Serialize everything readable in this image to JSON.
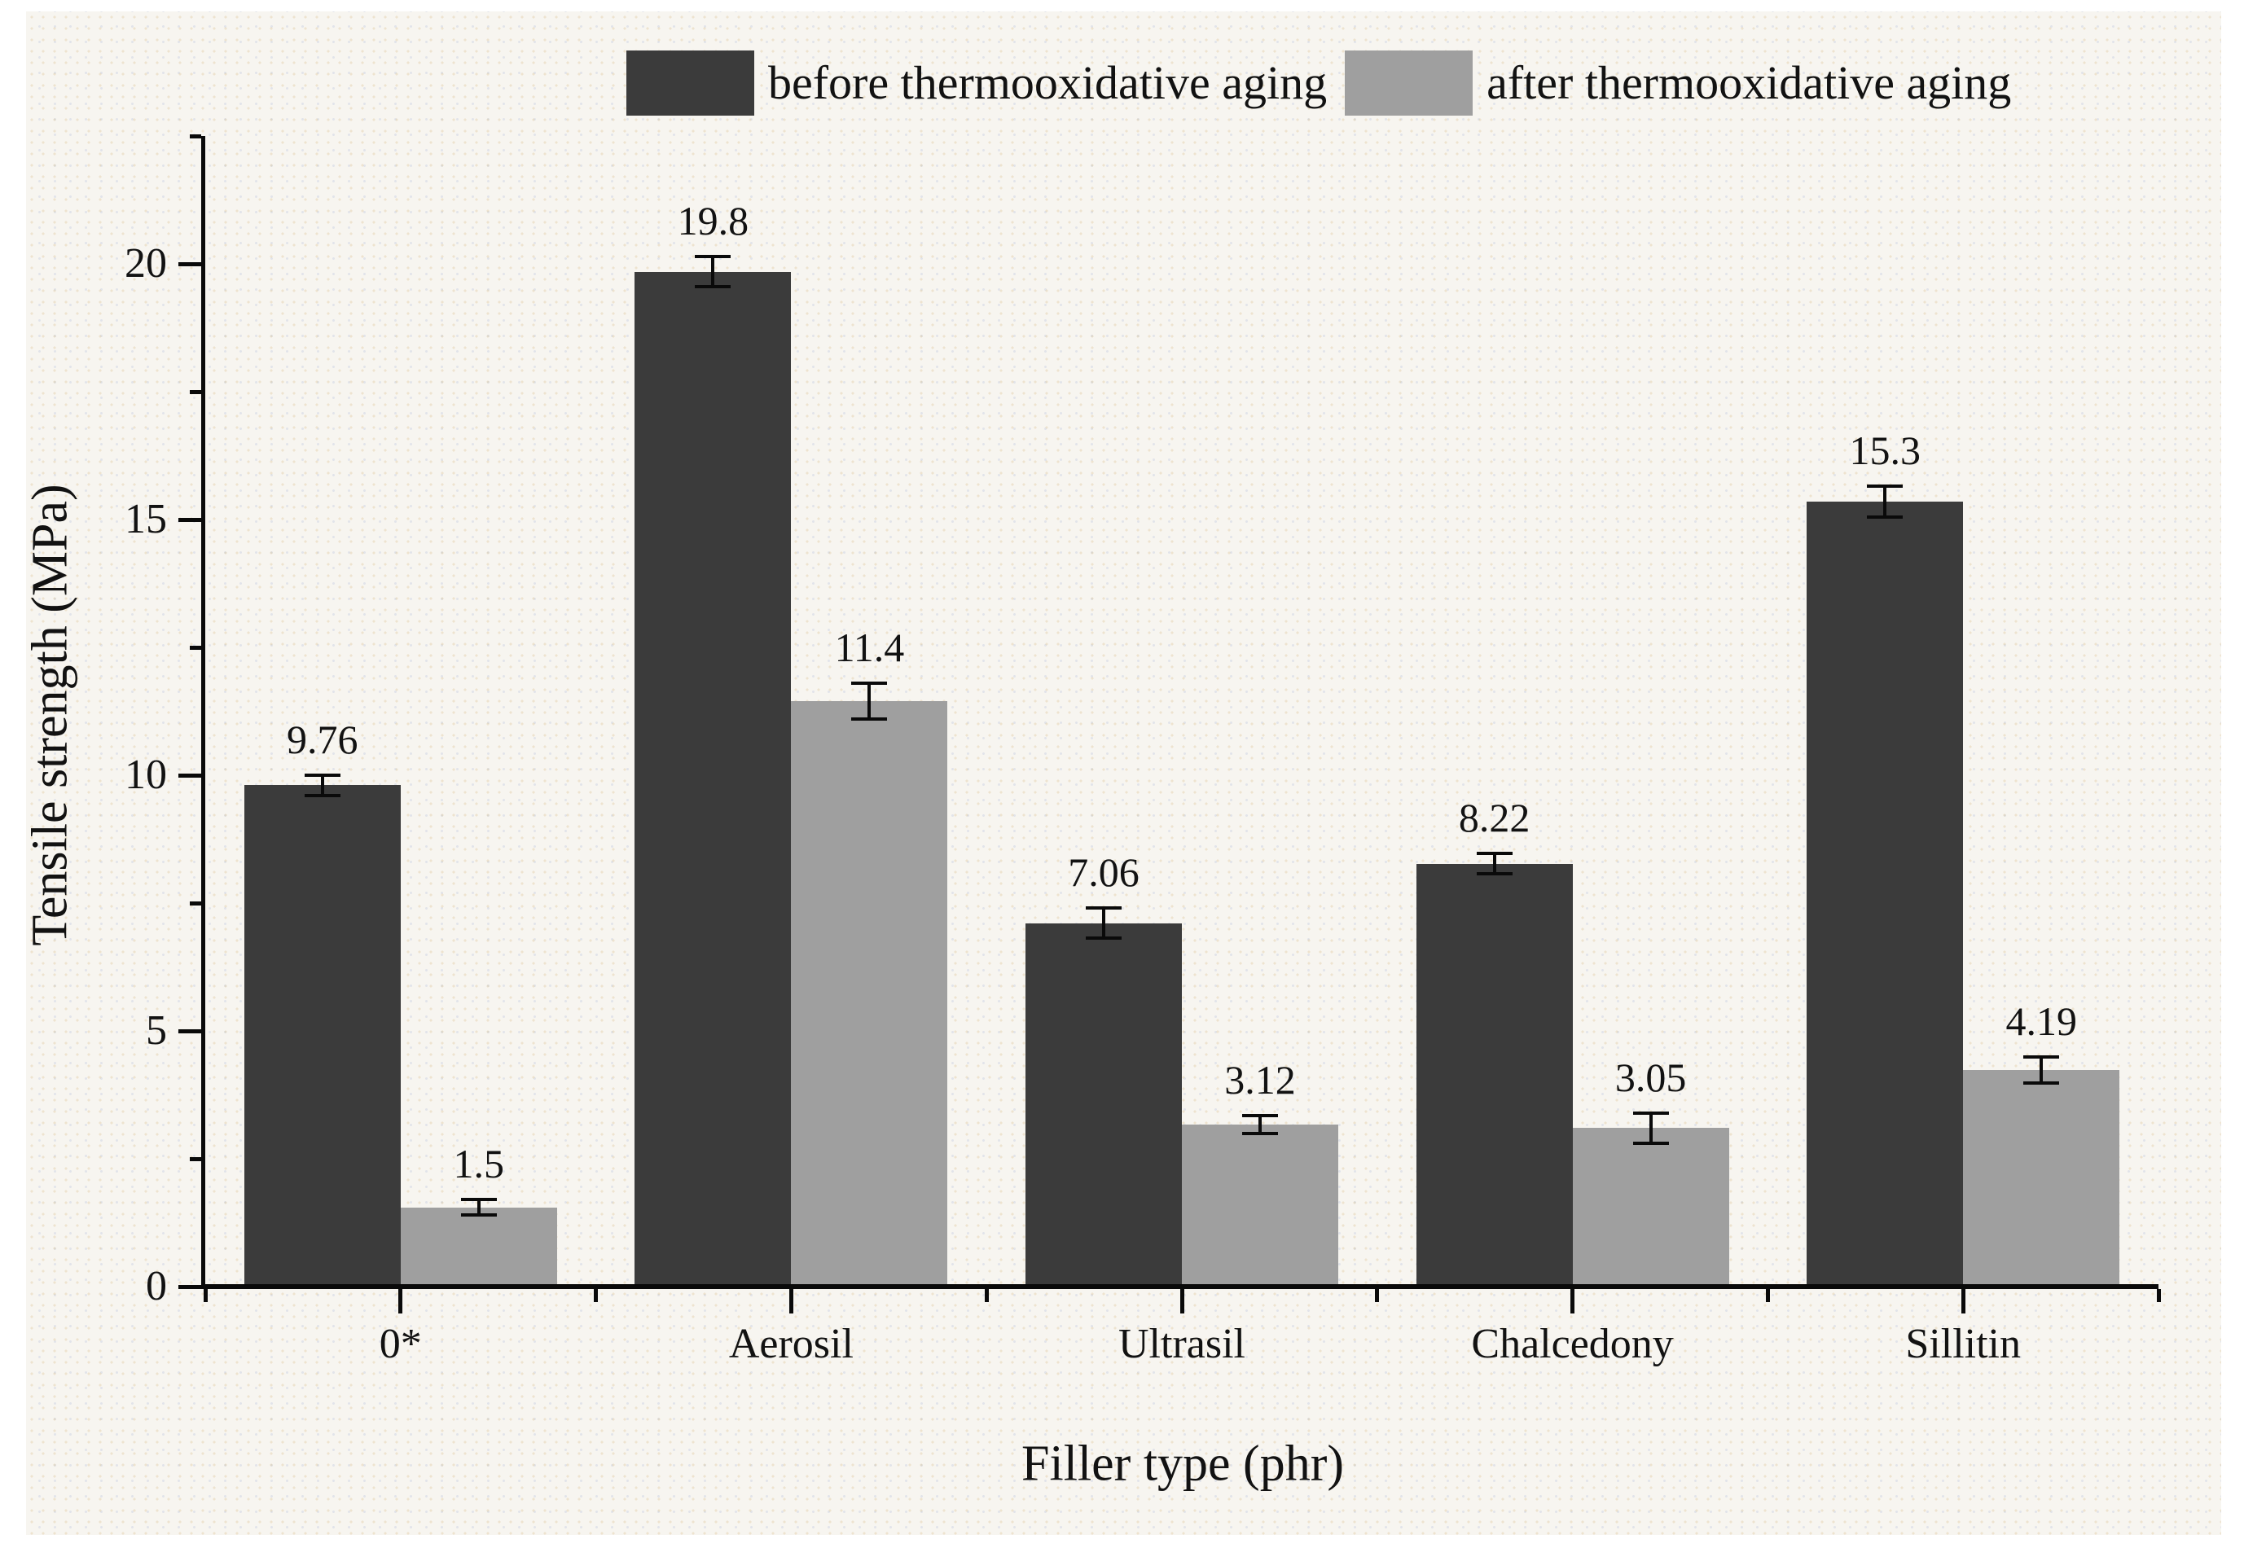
{
  "figure": {
    "background_color": "#f7f5f0",
    "text_color": "#121212",
    "axis_color": "#0a0a0a"
  },
  "chart_data": {
    "type": "bar",
    "title": "",
    "xlabel": "Filler type (phr)",
    "ylabel": "Tensile strength (MPa)",
    "categories": [
      "0*",
      "Aerosil",
      "Ultrasil",
      "Chalcedony",
      "Sillitin"
    ],
    "series": [
      {
        "name": "before thermooxidative aging",
        "color": "#3b3b3b",
        "values": [
          9.76,
          19.8,
          7.06,
          8.22,
          15.3
        ],
        "value_labels": [
          "9.76",
          "19.8",
          "7.06",
          "8.22",
          "15.3"
        ],
        "errors": [
          0.2,
          0.3,
          0.3,
          0.2,
          0.3
        ]
      },
      {
        "name": "after thermooxidative aging",
        "color": "#9f9f9f",
        "values": [
          1.5,
          11.4,
          3.12,
          3.05,
          4.19
        ],
        "value_labels": [
          "1.5",
          "11.4",
          "3.12",
          "3.05",
          "4.19"
        ],
        "errors": [
          0.15,
          0.35,
          0.18,
          0.3,
          0.25
        ]
      }
    ],
    "error_bars": true,
    "ylim": [
      0,
      22.5
    ],
    "yticks": [
      0,
      5,
      10,
      15,
      20
    ],
    "yticks_minor": [
      2.5,
      7.5,
      12.5,
      17.5,
      22.5
    ],
    "grid": false,
    "legend_position": "top"
  }
}
